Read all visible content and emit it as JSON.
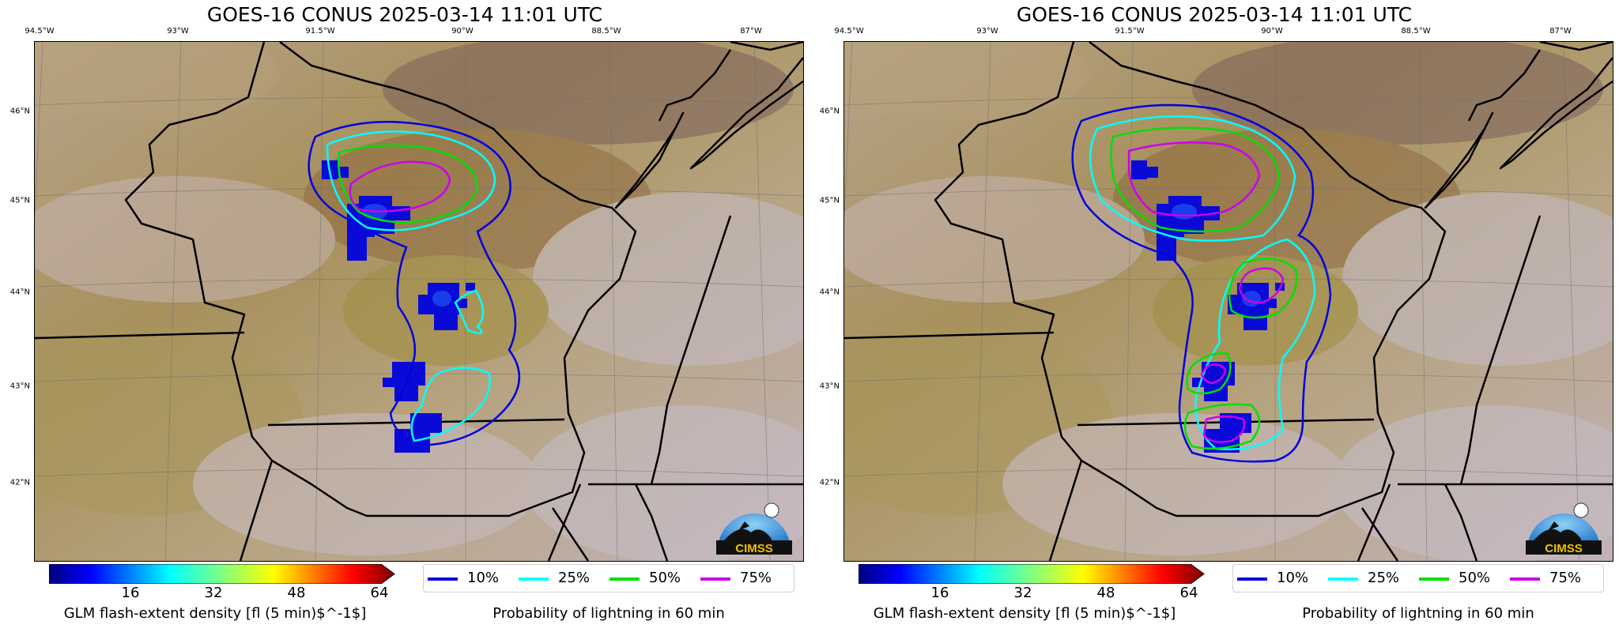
{
  "panels": [
    {
      "title": "GOES-16 CONUS 2025-03-14 11:01 UTC",
      "lon_labels": [
        "94.5°W",
        "93°W",
        "91.5°W",
        "90°W",
        "88.5°W",
        "87°W"
      ],
      "lat_labels": [
        "46°N",
        "45°N",
        "44°N",
        "43°N",
        "42°N"
      ],
      "colorbar": {
        "ticks": [
          "16",
          "32",
          "48",
          "64"
        ],
        "title": "GLM flash-extent density [fl (5 min)$^-1$]"
      },
      "legend": {
        "items": [
          "10%",
          "25%",
          "50%",
          "75%"
        ],
        "colors": [
          "#0000e0",
          "#00ffff",
          "#00e000",
          "#cc00ee"
        ],
        "caption": "Probability of lightning in 60 min"
      },
      "logo_text": "CIMSS"
    },
    {
      "title": "GOES-16 CONUS 2025-03-14 11:01 UTC",
      "lon_labels": [
        "94.5°W",
        "93°W",
        "91.5°W",
        "90°W",
        "88.5°W",
        "87°W"
      ],
      "lat_labels": [
        "46°N",
        "45°N",
        "44°N",
        "43°N",
        "42°N"
      ],
      "colorbar": {
        "ticks": [
          "16",
          "32",
          "48",
          "64"
        ],
        "title": "GLM flash-extent density [fl (5 min)$^-1$]"
      },
      "legend": {
        "items": [
          "10%",
          "25%",
          "50%",
          "75%"
        ],
        "colors": [
          "#0000e0",
          "#00ffff",
          "#00e000",
          "#cc00ee"
        ],
        "caption": "Probability of lightning in 60 min"
      },
      "logo_text": "CIMSS"
    }
  ]
}
